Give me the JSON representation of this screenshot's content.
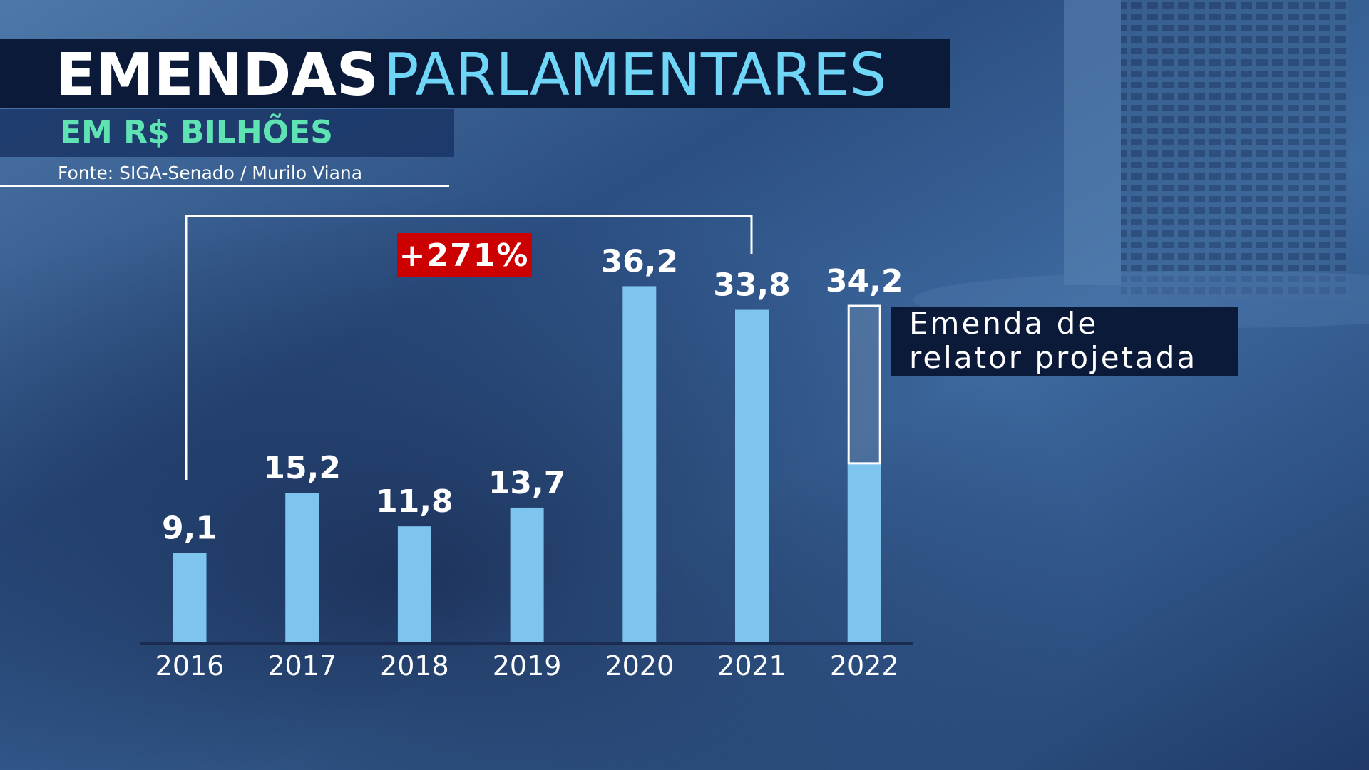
{
  "chart_data": {
    "type": "bar",
    "title": "EMENDAS",
    "title_highlight": "PARLAMENTARES",
    "subtitle": "EM R$ BILHÕES",
    "source": "Fonte: SIGA-Senado / Murilo Viana",
    "annotation": "+271%",
    "categories": [
      "2016",
      "2017",
      "2018",
      "2019",
      "2020",
      "2021",
      "2022"
    ],
    "series": [
      {
        "color": "#7dc4ee",
        "values": [
          9.1,
          15.2,
          11.8,
          13.7,
          36.2,
          33.8,
          18.2
        ]
      },
      {
        "name": "Emenda de relator projetada",
        "color": "#ffffff",
        "values": [
          null,
          null,
          null,
          null,
          null,
          null,
          16.0
        ]
      }
    ],
    "totals": [
      9.1,
      15.2,
      11.8,
      13.7,
      36.2,
      33.8,
      34.2
    ],
    "value_labels": [
      "9,1",
      "15,2",
      "11,8",
      "13,7",
      "36,2",
      "33,8",
      "34,2"
    ]
  }
}
